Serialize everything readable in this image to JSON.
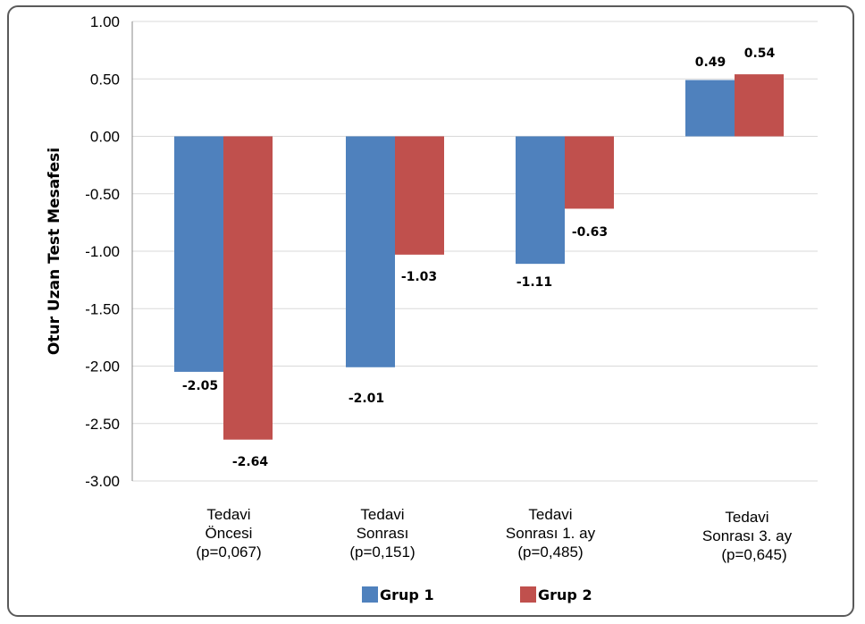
{
  "chart_data": {
    "type": "bar",
    "title": "",
    "xlabel": "",
    "ylabel": "Otur Uzan Test Mesafesi",
    "ylim": [
      -3.0,
      1.0
    ],
    "yticks": [
      "1.00",
      "0.50",
      "0.00",
      "-0.50",
      "-1.00",
      "-1.50",
      "-2.00",
      "-2.50",
      "-3.00"
    ],
    "categories": [
      [
        "Tedavi",
        "Öncesi",
        "(p=0,067)"
      ],
      [
        "Tedavi",
        "Sonrası",
        "(p=0,151)"
      ],
      [
        "Tedavi",
        "Sonrası 1. ay",
        "(p=0,485)"
      ],
      [
        "Tedavi",
        "Sonrası 3. ay",
        "(p=0,645)"
      ]
    ],
    "series": [
      {
        "name": "Grup 1",
        "color": "#4f81bd",
        "values": [
          -2.05,
          -2.01,
          -1.11,
          0.49
        ],
        "labels": [
          "-2.05",
          "-2.01",
          "-1.11",
          "0.49"
        ]
      },
      {
        "name": "Grup 2",
        "color": "#c0504d",
        "values": [
          -2.64,
          -1.03,
          -0.63,
          0.54
        ],
        "labels": [
          "-2.64",
          "-1.03",
          "-0.63",
          "0.54"
        ]
      }
    ],
    "grid": true,
    "legend_position": "bottom"
  }
}
